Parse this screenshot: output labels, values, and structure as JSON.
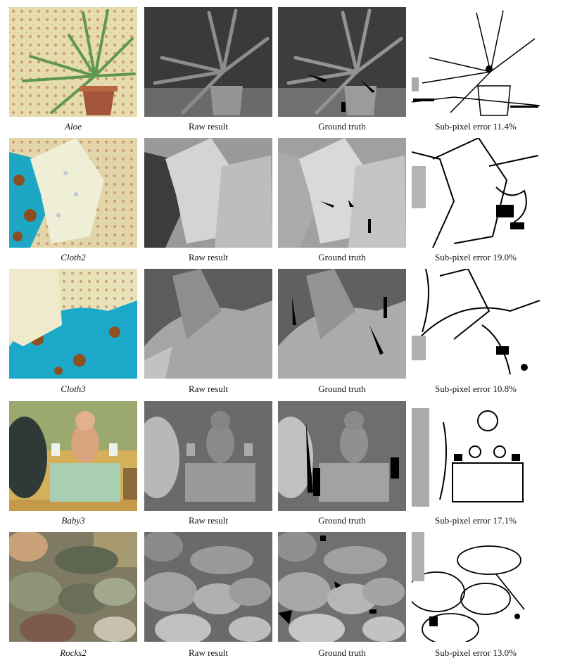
{
  "rows": [
    {
      "scene": "Aloe",
      "raw_label": "Raw result",
      "gt_label": "Ground truth",
      "error_label": "Sub-pixel error 11.4%"
    },
    {
      "scene": "Cloth2",
      "raw_label": "Raw result",
      "gt_label": "Ground truth",
      "error_label": "Sub-pixel error 19.0%"
    },
    {
      "scene": "Cloth3",
      "raw_label": "Raw result",
      "gt_label": "Ground truth",
      "error_label": "Sub-pixel error 10.8%"
    },
    {
      "scene": "Baby3",
      "raw_label": "Raw result",
      "gt_label": "Ground truth",
      "error_label": "Sub-pixel error 17.1%"
    },
    {
      "scene": "Rocks2",
      "raw_label": "Raw result",
      "gt_label": "Ground truth",
      "error_label": "Sub-pixel error 13.0%"
    }
  ]
}
